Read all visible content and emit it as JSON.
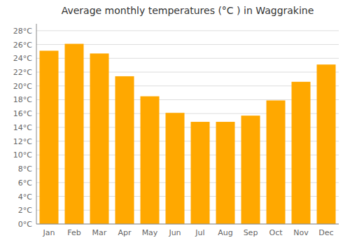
{
  "chart_data": {
    "type": "bar",
    "title": "Average monthly temperatures (°C ) in Waggrakine",
    "categories": [
      "Jan",
      "Feb",
      "Mar",
      "Apr",
      "May",
      "Jun",
      "Jul",
      "Aug",
      "Sep",
      "Oct",
      "Nov",
      "Dec"
    ],
    "values": [
      25.1,
      26.1,
      24.7,
      21.4,
      18.5,
      16.1,
      14.8,
      14.8,
      15.7,
      17.9,
      20.6,
      23.1
    ],
    "color": "#FFA800",
    "ylim": [
      0,
      29
    ],
    "yticks": [
      {
        "value": 0,
        "label": "0°C"
      },
      {
        "value": 2,
        "label": "2°C"
      },
      {
        "value": 4,
        "label": "4°C"
      },
      {
        "value": 6,
        "label": "6°C"
      },
      {
        "value": 8,
        "label": "8°C"
      },
      {
        "value": 10,
        "label": "10°C"
      },
      {
        "value": 12,
        "label": "12°C"
      },
      {
        "value": 14,
        "label": "14°C"
      },
      {
        "value": 16,
        "label": "16°C"
      },
      {
        "value": 18,
        "label": "18°C"
      },
      {
        "value": 20,
        "label": "20°C"
      },
      {
        "value": 22,
        "label": "22°C"
      },
      {
        "value": 24,
        "label": "24°C"
      },
      {
        "value": 26,
        "label": "26°C"
      },
      {
        "value": 28,
        "label": "28°C"
      }
    ],
    "grid": true
  }
}
